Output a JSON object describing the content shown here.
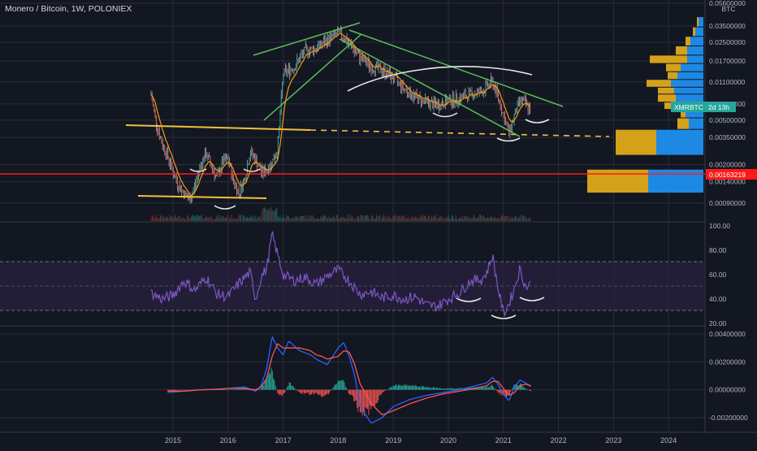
{
  "header": {
    "title": "Monero / Bitcoin, 1W, POLONIEX"
  },
  "colors": {
    "background": "#131722",
    "grid": "#2a2e39",
    "candle_up": "#26a69a",
    "candle_down": "#ef5350",
    "wick": "#b7b9c0",
    "ma_line": "#f39c12",
    "channel_green": "#4caf50",
    "support_orange": "#f0c040",
    "red_level": "#ff1a1a",
    "white_curve": "#e6e6e6",
    "rsi_line": "#7e57c2",
    "rsi_band": "#2a2240",
    "macd_line": "#2962ff",
    "signal_line": "#ff5252",
    "vp_gold": "#d4a21a",
    "vp_blue": "#1e88e5",
    "label_green": "#26a69a"
  },
  "price_axis": {
    "unit": "BTC",
    "ticks": [
      "0.05600000",
      "0.03500000",
      "0.02500000",
      "0.01700000",
      "0.01100000",
      "0.00700000",
      "0.00500000",
      "0.00350000",
      "0.00200000",
      "0.00140000",
      "0.00090000"
    ],
    "current_label": {
      "symbol": "XMRBTC",
      "countdown": "2d 13h"
    },
    "red_level_label": "0.00163219"
  },
  "rsi_axis": {
    "ticks": [
      "100.00",
      "80.00",
      "60.00",
      "40.00",
      "20.00"
    ]
  },
  "macd_axis": {
    "ticks": [
      "0.00400000",
      "0.00200000",
      "0.00000000",
      "-0.00200000"
    ]
  },
  "x_axis": {
    "ticks": [
      "2015",
      "2016",
      "2017",
      "2018",
      "2019",
      "2020",
      "2021",
      "2022",
      "2023",
      "2024"
    ]
  },
  "chart_data": [
    {
      "type": "line",
      "panel": "price",
      "x_unit": "year",
      "y_scale": "log",
      "series": [
        {
          "x": [
            2014.6,
            2014.7,
            2014.8,
            2014.9,
            2015.0,
            2015.1,
            2015.2,
            2015.3,
            2015.4,
            2015.5,
            2015.6,
            2015.7,
            2015.8,
            2015.9,
            2016.0,
            2016.1,
            2016.2,
            2016.3,
            2016.4,
            2016.5,
            2016.6,
            2016.65,
            2016.7,
            2016.8,
            2016.9,
            2017.0,
            2017.2,
            2017.4,
            2017.6,
            2017.8,
            2018.0,
            2018.1,
            2018.2,
            2018.4,
            2018.6,
            2018.8,
            2019.0,
            2019.2,
            2019.4,
            2019.6,
            2019.8,
            2020.0,
            2020.2,
            2020.4,
            2020.6,
            2020.8,
            2020.9,
            2021.0,
            2021.1,
            2021.2,
            2021.3,
            2021.4,
            2021.5
          ],
          "values": [
            0.0085,
            0.0046,
            0.0031,
            0.0024,
            0.0017,
            0.0013,
            0.0011,
            0.00095,
            0.0013,
            0.002,
            0.0025,
            0.0019,
            0.0015,
            0.0021,
            0.0022,
            0.0014,
            0.0011,
            0.0015,
            0.0026,
            0.0022,
            0.0017,
            0.0017,
            0.0018,
            0.0021,
            0.0028,
            0.013,
            0.015,
            0.021,
            0.022,
            0.026,
            0.03,
            0.028,
            0.024,
            0.018,
            0.015,
            0.014,
            0.012,
            0.0095,
            0.008,
            0.0072,
            0.0068,
            0.0075,
            0.0078,
            0.0085,
            0.009,
            0.011,
            0.0082,
            0.0055,
            0.0038,
            0.0055,
            0.0075,
            0.007,
            0.006
          ]
        }
      ],
      "ylim": [
        0.0007,
        0.056
      ]
    },
    {
      "type": "line",
      "panel": "rsi",
      "x_unit": "year",
      "levels": [
        70,
        50,
        30
      ],
      "series": [
        {
          "x": [
            2014.6,
            2014.8,
            2015.0,
            2015.2,
            2015.4,
            2015.6,
            2015.8,
            2016.0,
            2016.2,
            2016.4,
            2016.5,
            2016.6,
            2016.7,
            2016.8,
            2017.0,
            2017.2,
            2017.4,
            2017.6,
            2017.8,
            2018.0,
            2018.2,
            2018.4,
            2018.6,
            2018.8,
            2019.0,
            2019.2,
            2019.4,
            2019.6,
            2019.8,
            2020.0,
            2020.2,
            2020.4,
            2020.6,
            2020.7,
            2020.8,
            2020.9,
            2021.0,
            2021.1,
            2021.2,
            2021.3,
            2021.4,
            2021.5
          ],
          "values": [
            45,
            40,
            43,
            55,
            47,
            58,
            44,
            42,
            53,
            62,
            40,
            58,
            65,
            93,
            60,
            55,
            58,
            52,
            59,
            64,
            55,
            44,
            46,
            41,
            43,
            40,
            42,
            35,
            34,
            40,
            45,
            55,
            56,
            62,
            76,
            50,
            28,
            36,
            49,
            65,
            50,
            52
          ]
        }
      ],
      "ylim": [
        15,
        100
      ]
    },
    {
      "type": "line",
      "panel": "macd",
      "x_unit": "year",
      "series": [
        {
          "name": "macd",
          "x": [
            2014.9,
            2015.2,
            2015.5,
            2015.8,
            2016.0,
            2016.3,
            2016.5,
            2016.6,
            2016.7,
            2016.8,
            2016.9,
            2017.0,
            2017.1,
            2017.3,
            2017.5,
            2017.6,
            2017.7,
            2017.8,
            2018.0,
            2018.1,
            2018.2,
            2018.3,
            2018.4,
            2018.6,
            2018.8,
            2019.0,
            2019.3,
            2019.6,
            2019.9,
            2020.2,
            2020.5,
            2020.7,
            2020.8,
            2020.9,
            2021.0,
            2021.1,
            2021.2,
            2021.3,
            2021.4,
            2021.5
          ],
          "values": [
            -0.0002,
            -0.0001,
            0.0,
            5e-05,
            0.0001,
            0.0002,
            -0.0001,
            0.0003,
            0.0015,
            0.0038,
            0.003,
            0.0025,
            0.0035,
            0.0028,
            0.0025,
            0.0022,
            0.002,
            0.0018,
            0.003,
            0.0034,
            0.0024,
            0.001,
            -0.0012,
            -0.0024,
            -0.002,
            -0.0012,
            -0.0007,
            -0.0004,
            -0.0002,
            0.0,
            0.0003,
            0.0005,
            0.0009,
            0.0004,
            -0.0003,
            -0.0008,
            0.0002,
            0.0007,
            0.0005,
            0.0002
          ]
        },
        {
          "name": "signal",
          "x": [
            2014.9,
            2015.2,
            2015.5,
            2015.8,
            2016.0,
            2016.3,
            2016.5,
            2016.6,
            2016.7,
            2016.8,
            2016.9,
            2017.0,
            2017.1,
            2017.3,
            2017.5,
            2017.6,
            2017.7,
            2017.8,
            2018.0,
            2018.1,
            2018.2,
            2018.3,
            2018.4,
            2018.6,
            2018.8,
            2019.0,
            2019.3,
            2019.6,
            2019.9,
            2020.2,
            2020.5,
            2020.7,
            2020.8,
            2020.9,
            2021.0,
            2021.1,
            2021.2,
            2021.3,
            2021.4,
            2021.5
          ],
          "values": [
            -0.0001,
            -0.0001,
            0.0,
            3e-05,
            0.0001,
            0.0001,
            0.0,
            0.0002,
            0.0008,
            0.0024,
            0.0033,
            0.003,
            0.003,
            0.003,
            0.0028,
            0.0025,
            0.0024,
            0.0022,
            0.0024,
            0.0028,
            0.0027,
            0.0018,
            0.0004,
            -0.001,
            -0.0018,
            -0.0015,
            -0.001,
            -0.0006,
            -0.0003,
            -0.0001,
            0.0001,
            0.0003,
            0.0006,
            0.0006,
            0.0001,
            -0.0004,
            -0.0002,
            0.0003,
            0.0004,
            0.0003
          ]
        }
      ],
      "ylim": [
        -0.0028,
        0.0045
      ]
    }
  ]
}
